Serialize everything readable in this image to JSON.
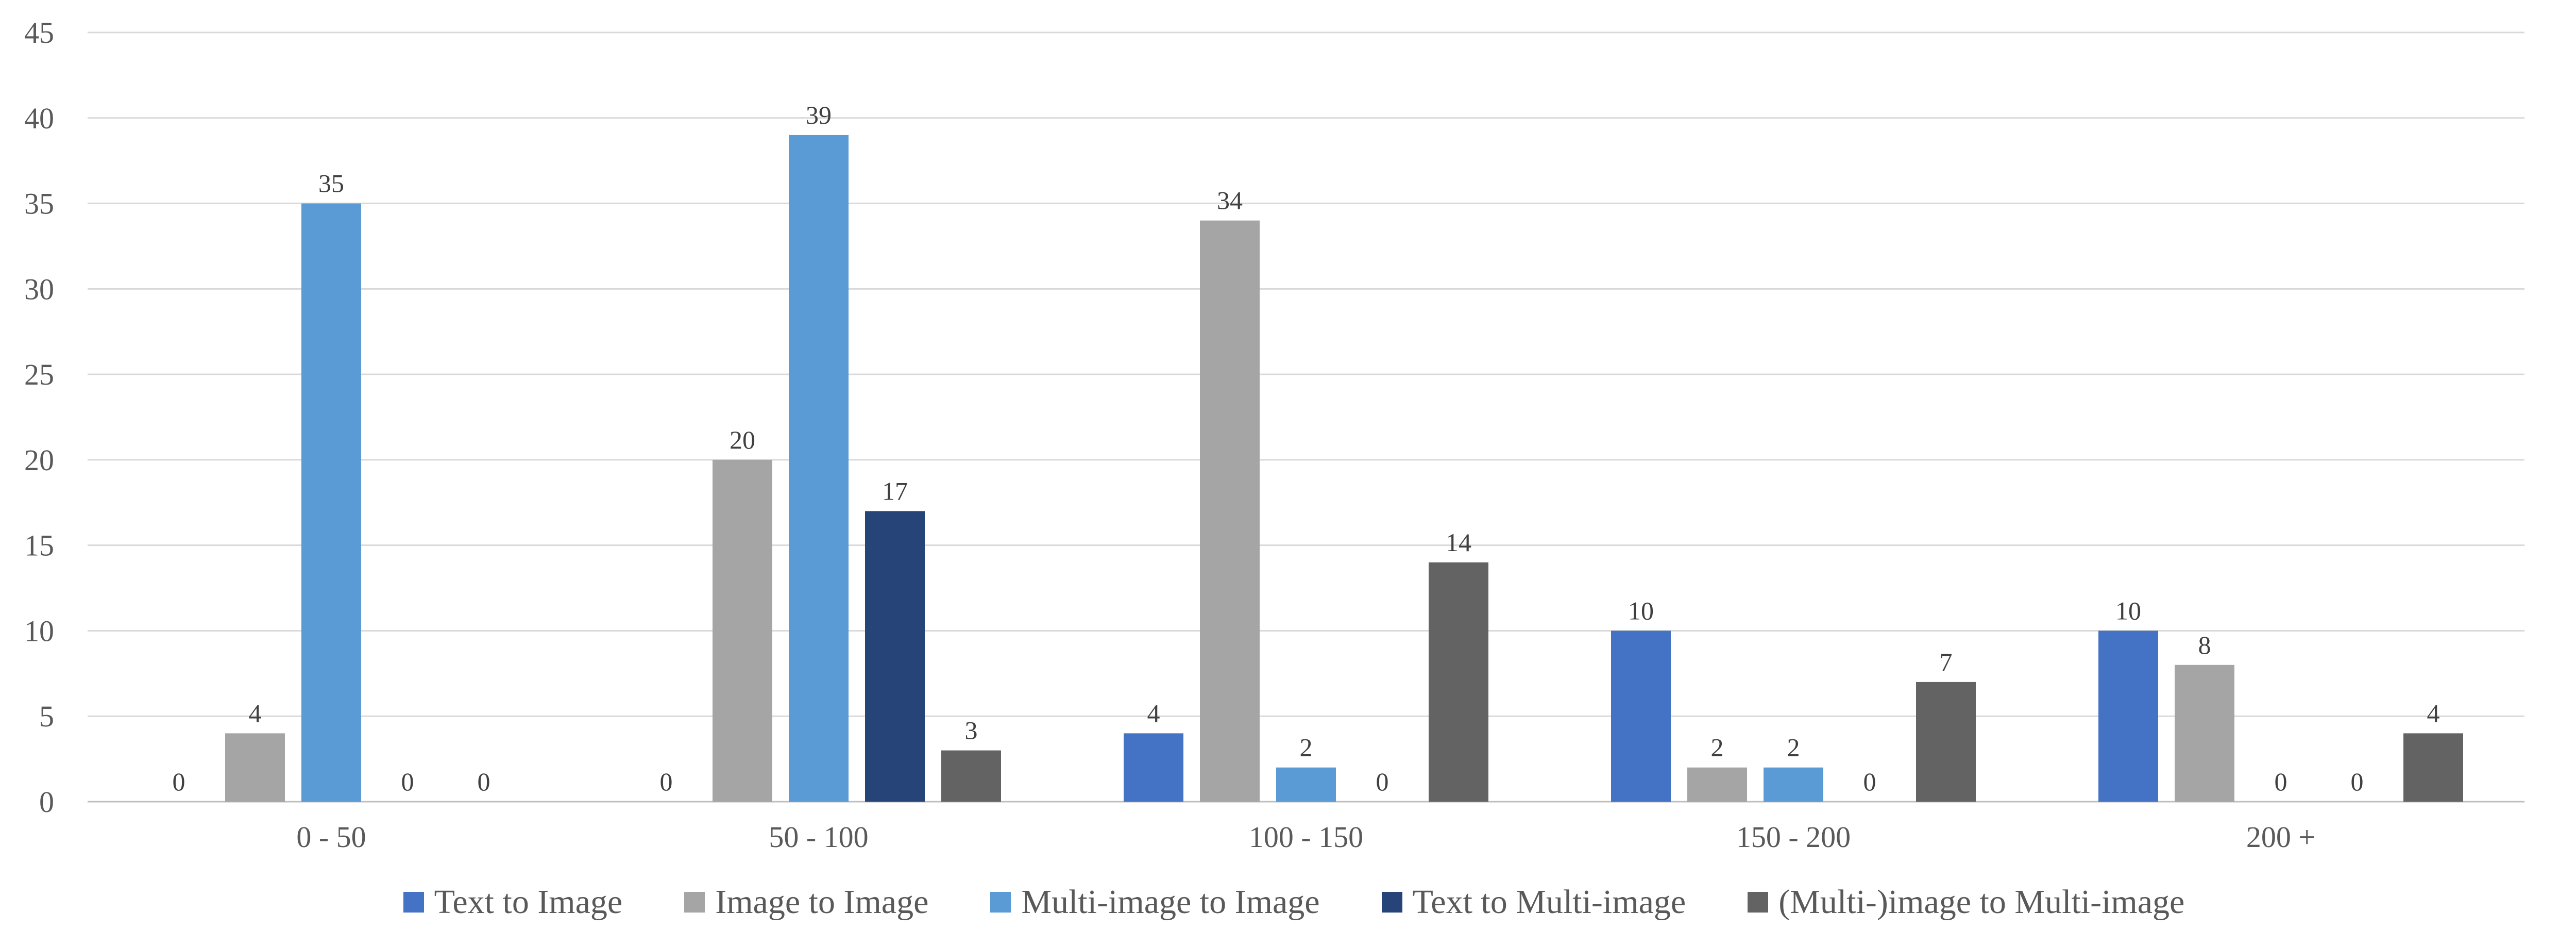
{
  "chart_data": {
    "type": "bar",
    "categories": [
      "0 - 50",
      "50 - 100",
      "100 - 150",
      "150 - 200",
      "200 +"
    ],
    "series": [
      {
        "name": "Text to Image",
        "color": "#4472C4",
        "values": [
          0,
          0,
          4,
          10,
          10
        ]
      },
      {
        "name": "Image to Image",
        "color": "#A5A5A5",
        "values": [
          4,
          20,
          34,
          2,
          8
        ]
      },
      {
        "name": "Multi-image to Image",
        "color": "#5B9BD5",
        "values": [
          35,
          39,
          2,
          2,
          0
        ]
      },
      {
        "name": "Text to Multi-image",
        "color": "#264478",
        "values": [
          0,
          17,
          0,
          0,
          0
        ]
      },
      {
        "name": "(Multi-)image to Multi-image",
        "color": "#636363",
        "values": [
          0,
          3,
          14,
          7,
          4
        ]
      }
    ],
    "ylim": [
      0,
      45
    ],
    "yticks": [
      0,
      5,
      10,
      15,
      20,
      25,
      30,
      35,
      40,
      45
    ],
    "grid": true,
    "legend_position": "bottom",
    "data_labels": true,
    "title": "",
    "xlabel": "",
    "ylabel": ""
  }
}
